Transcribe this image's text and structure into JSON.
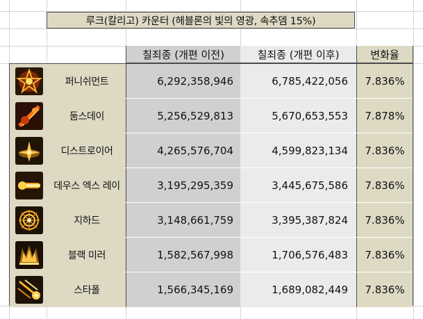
{
  "title": "루크(칼리고) 카운터 (헤블론의 빛의 영광, 속추뎀 15%)",
  "headers": {
    "before": "칠죄종 (개편 이전)",
    "after": "칠죄종 (개편 이후)",
    "rate": "변화율"
  },
  "rows": [
    {
      "name": "퍼니쉬먼트",
      "icon": "punishment-skill-icon",
      "before": "6,292,358,946",
      "after": "6,785,422,056",
      "rate": "7.836%"
    },
    {
      "name": "둠스데이",
      "icon": "doomsday-skill-icon",
      "before": "5,256,529,813",
      "after": "5,670,653,553",
      "rate": "7.878%"
    },
    {
      "name": "디스트로이어",
      "icon": "destroyer-skill-icon",
      "before": "4,265,576,704",
      "after": "4,599,823,134",
      "rate": "7.836%"
    },
    {
      "name": "데우스 엑스 레이",
      "icon": "deus-ex-ray-skill-icon",
      "before": "3,195,295,359",
      "after": "3,445,675,586",
      "rate": "7.836%"
    },
    {
      "name": "지하드",
      "icon": "jihad-skill-icon",
      "before": "3,148,661,759",
      "after": "3,395,387,824",
      "rate": "7.836%"
    },
    {
      "name": "블랙 미러",
      "icon": "black-mirror-skill-icon",
      "before": "1,582,567,998",
      "after": "1,706,576,483",
      "rate": "7.836%"
    },
    {
      "name": "스타폴",
      "icon": "starfall-skill-icon",
      "before": "1,566,345,169",
      "after": "1,689,082,449",
      "rate": "7.836%"
    }
  ]
}
